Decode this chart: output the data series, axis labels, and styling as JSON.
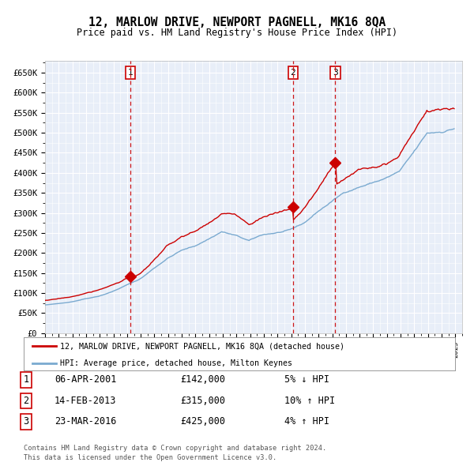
{
  "title": "12, MARLOW DRIVE, NEWPORT PAGNELL, MK16 8QA",
  "subtitle": "Price paid vs. HM Land Registry's House Price Index (HPI)",
  "background_color": "#e8eef8",
  "plot_bg_color": "#e8eef8",
  "grid_color": "#ffffff",
  "hpi_line_color": "#7aaad0",
  "price_line_color": "#cc0000",
  "marker_color": "#cc0000",
  "dashed_line_color": "#cc0000",
  "ylim": [
    0,
    680000
  ],
  "yticks": [
    0,
    50000,
    100000,
    150000,
    200000,
    250000,
    300000,
    350000,
    400000,
    450000,
    500000,
    550000,
    600000,
    650000
  ],
  "ytick_labels": [
    "£0",
    "£50K",
    "£100K",
    "£150K",
    "£200K",
    "£250K",
    "£300K",
    "£350K",
    "£400K",
    "£450K",
    "£500K",
    "£550K",
    "£600K",
    "£650K"
  ],
  "xstart": 1995,
  "xend": 2025,
  "transactions": [
    {
      "label": "1",
      "date": "06-APR-2001",
      "price": 142000,
      "year": 2001.25,
      "pct": "5%",
      "dir": "↓"
    },
    {
      "label": "2",
      "date": "14-FEB-2013",
      "price": 315000,
      "year": 2013.12,
      "pct": "10%",
      "dir": "↑"
    },
    {
      "label": "3",
      "date": "23-MAR-2016",
      "price": 425000,
      "year": 2016.22,
      "pct": "4%",
      "dir": "↑"
    }
  ],
  "legend_label_red": "12, MARLOW DRIVE, NEWPORT PAGNELL, MK16 8QA (detached house)",
  "legend_label_blue": "HPI: Average price, detached house, Milton Keynes",
  "footer1": "Contains HM Land Registry data © Crown copyright and database right 2024.",
  "footer2": "This data is licensed under the Open Government Licence v3.0."
}
